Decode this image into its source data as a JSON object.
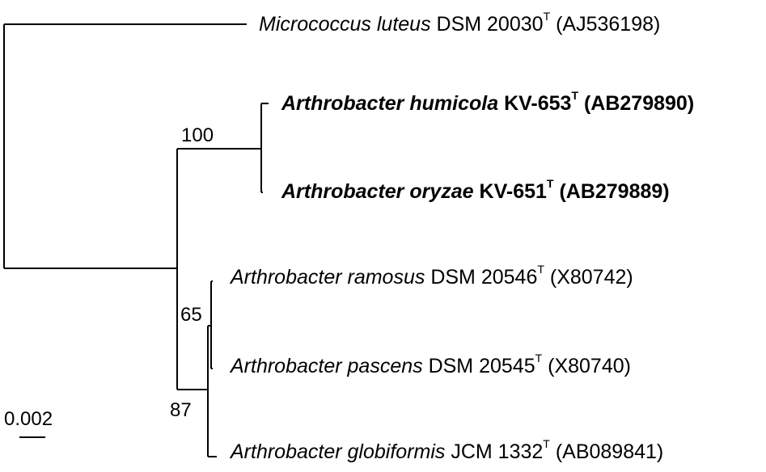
{
  "taxa": [
    {
      "id": "micrococcus",
      "genus_species": "Micrococcus luteus",
      "strain": "DSM 20030",
      "type_mark": "T",
      "accession": "(AJ536198)",
      "bold": false
    },
    {
      "id": "humicola",
      "genus_species": "Arthrobacter humicola",
      "strain": "KV-653",
      "type_mark": "T",
      "accession": "(AB279890)",
      "bold": true
    },
    {
      "id": "oryzae",
      "genus_species": "Arthrobacter oryzae",
      "strain": "KV-651",
      "type_mark": "T",
      "accession": "(AB279889)",
      "bold": true
    },
    {
      "id": "ramosus",
      "genus_species": "Arthrobacter ramosus",
      "strain": "DSM 20546",
      "type_mark": "T",
      "accession": "(X80742)",
      "bold": false
    },
    {
      "id": "pascens",
      "genus_species": "Arthrobacter pascens",
      "strain": "DSM 20545",
      "type_mark": "T",
      "accession": "(X80740)",
      "bold": false
    },
    {
      "id": "globiformis",
      "genus_species": "Arthrobacter globiformis",
      "strain": "JCM 1332",
      "type_mark": "T",
      "accession": "(AB089841)",
      "bold": false
    }
  ],
  "bootstrap": {
    "humicola_oryzae": "100",
    "ramosus_pascens": "65",
    "ramosus_pascens_globiformis": "87"
  },
  "scale_bar": {
    "label": "0.002",
    "value": 0.002
  }
}
